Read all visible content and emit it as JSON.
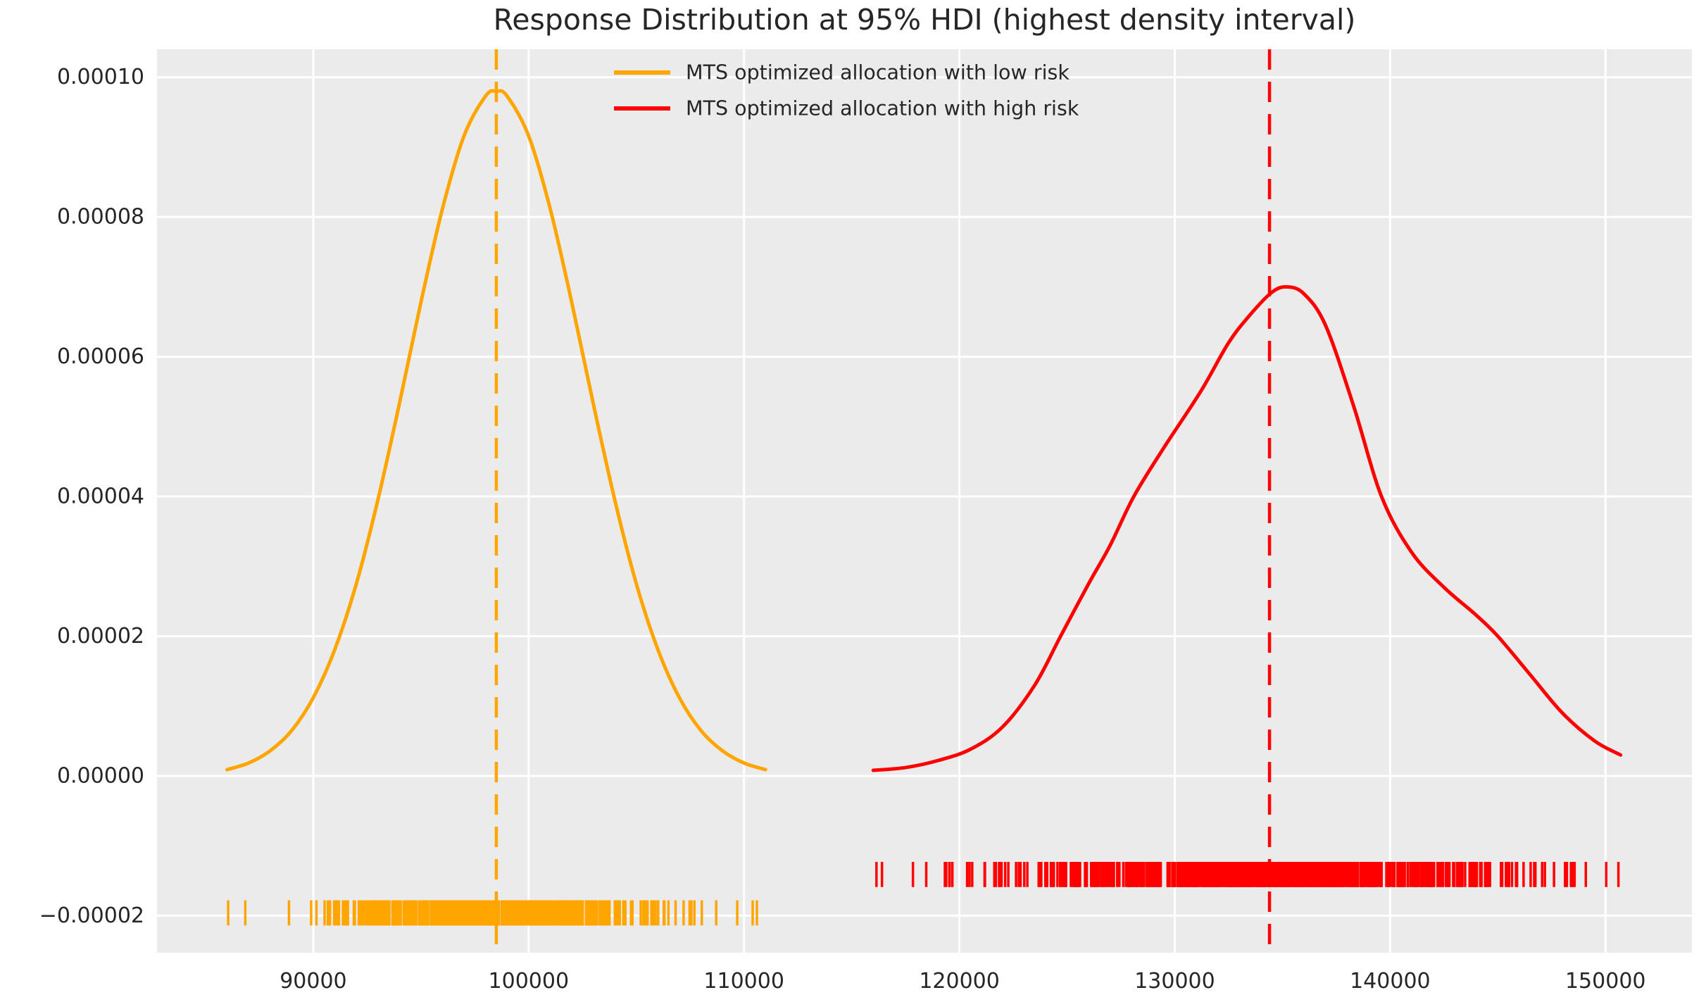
{
  "chart_data": {
    "type": "kde",
    "title": "Response Distribution at 95% HDI (highest density interval)",
    "background": "#ebebeb",
    "grid_color": "#ffffff",
    "text_color": "#262626",
    "legend_position": "upper center-left, no frame",
    "grid": true,
    "xlim": [
      82745,
      154013
    ],
    "ylim": [
      -2.53e-05,
      0.000104
    ],
    "x_ticks": [
      90000,
      100000,
      110000,
      120000,
      130000,
      140000,
      150000
    ],
    "x_tick_labels": [
      "90000",
      "100000",
      "110000",
      "120000",
      "130000",
      "140000",
      "150000"
    ],
    "y_ticks": [
      0.0001,
      8e-05,
      6e-05,
      4e-05,
      2e-05,
      0,
      -2e-05
    ],
    "y_tick_labels": [
      "0.00010",
      "0.00008",
      "0.00006",
      "0.00004",
      "0.00002",
      "0.00000",
      "−0.00002"
    ],
    "series": [
      {
        "key": "low-risk",
        "name": "MTS optimized allocation with low risk",
        "color": "#ffa500",
        "mean_line_x": 98500,
        "peak_density": 9.8e-05,
        "curve": [
          [
            86000,
            9e-07
          ],
          [
            87000,
            1.85e-06
          ],
          [
            88000,
            3.6e-06
          ],
          [
            89000,
            6.5e-06
          ],
          [
            90000,
            1.12e-05
          ],
          [
            91000,
            1.81e-05
          ],
          [
            92000,
            2.75e-05
          ],
          [
            93000,
            3.95e-05
          ],
          [
            94000,
            5.33e-05
          ],
          [
            95000,
            6.78e-05
          ],
          [
            96000,
            8.12e-05
          ],
          [
            97000,
            9.16e-05
          ],
          [
            98000,
            9.73e-05
          ],
          [
            98500,
            9.8e-05
          ],
          [
            99000,
            9.73e-05
          ],
          [
            100000,
            9.16e-05
          ],
          [
            101000,
            8.12e-05
          ],
          [
            102000,
            6.78e-05
          ],
          [
            103000,
            5.33e-05
          ],
          [
            104000,
            3.95e-05
          ],
          [
            105000,
            2.75e-05
          ],
          [
            106000,
            1.81e-05
          ],
          [
            107000,
            1.12e-05
          ],
          [
            108000,
            6.5e-06
          ],
          [
            109000,
            3.6e-06
          ],
          [
            110000,
            1.85e-06
          ],
          [
            111000,
            9e-07
          ]
        ],
        "rug": {
          "center": -1.96e-05,
          "half_height": 1.8e-06,
          "mean": 98500,
          "sd": 3700,
          "n": 560,
          "seed": 7,
          "clip": [
            85800,
            111200
          ],
          "extra": [
            86050
          ]
        }
      },
      {
        "key": "high-risk",
        "name": "MTS optimized allocation with high risk",
        "color": "#ff0000",
        "mean_line_x": 134400,
        "peak_density": 7e-05,
        "curve": [
          [
            116000,
            8e-07
          ],
          [
            117500,
            1.2e-06
          ],
          [
            119000,
            2.2e-06
          ],
          [
            120500,
            3.8e-06
          ],
          [
            122000,
            7e-06
          ],
          [
            123500,
            1.3e-05
          ],
          [
            124700,
            2e-05
          ],
          [
            126000,
            2.75e-05
          ],
          [
            127000,
            3.3e-05
          ],
          [
            128100,
            4e-05
          ],
          [
            129500,
            4.7e-05
          ],
          [
            131200,
            5.5e-05
          ],
          [
            132500,
            6.2e-05
          ],
          [
            133500,
            6.6e-05
          ],
          [
            134500,
            6.92e-05
          ],
          [
            135200,
            7e-05
          ],
          [
            136000,
            6.9e-05
          ],
          [
            137000,
            6.45e-05
          ],
          [
            138300,
            5.3e-05
          ],
          [
            139600,
            4e-05
          ],
          [
            141000,
            3.2e-05
          ],
          [
            142500,
            2.7e-05
          ],
          [
            144000,
            2.3e-05
          ],
          [
            145000,
            2e-05
          ],
          [
            146500,
            1.45e-05
          ],
          [
            148000,
            9e-06
          ],
          [
            149500,
            5e-06
          ],
          [
            150700,
            3e-06
          ]
        ],
        "rug": {
          "center": -1.41e-05,
          "half_height": 1.8e-06,
          "mean": 134300,
          "sd": 6000,
          "n": 660,
          "seed": 12,
          "clip": [
            115900,
            150800
          ],
          "extra": [
            116150,
            150600
          ]
        }
      }
    ]
  }
}
